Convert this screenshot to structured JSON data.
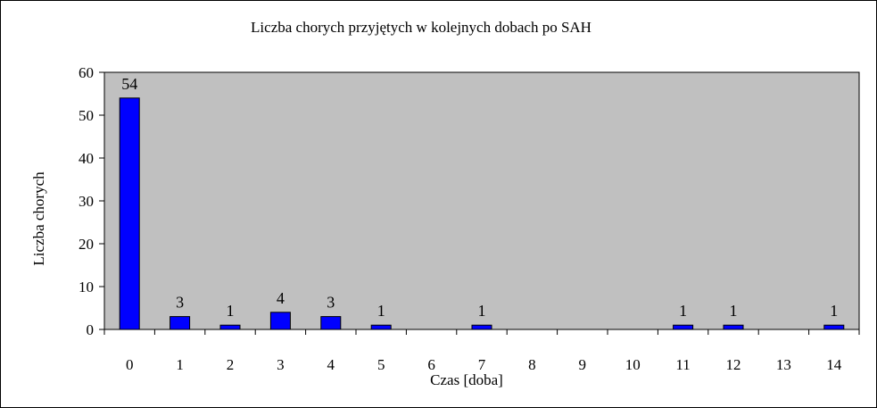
{
  "chart_data": {
    "type": "bar",
    "title": "Liczba chorych przyjętych w kolejnych dobach po SAH",
    "xlabel": "Czas [doba]",
    "ylabel": "Liczba chorych",
    "categories": [
      "0",
      "1",
      "2",
      "3",
      "4",
      "5",
      "6",
      "7",
      "8",
      "9",
      "10",
      "11",
      "12",
      "13",
      "14"
    ],
    "values": [
      54,
      3,
      1,
      4,
      3,
      1,
      0,
      1,
      0,
      0,
      0,
      1,
      1,
      0,
      1
    ],
    "data_labels": [
      "54",
      "3",
      "1",
      "4",
      "3",
      "1",
      "",
      "1",
      "",
      "",
      "",
      "1",
      "1",
      "",
      "1"
    ],
    "ylim": [
      0,
      60
    ],
    "yticks": [
      "0",
      "10",
      "20",
      "30",
      "40",
      "50",
      "60"
    ],
    "grid": false,
    "legend": "none",
    "colors": {
      "bar_fill": "#0000ff",
      "bar_stroke": "#000000",
      "plot_background": "#c0c0c0",
      "axis": "#000000"
    }
  }
}
